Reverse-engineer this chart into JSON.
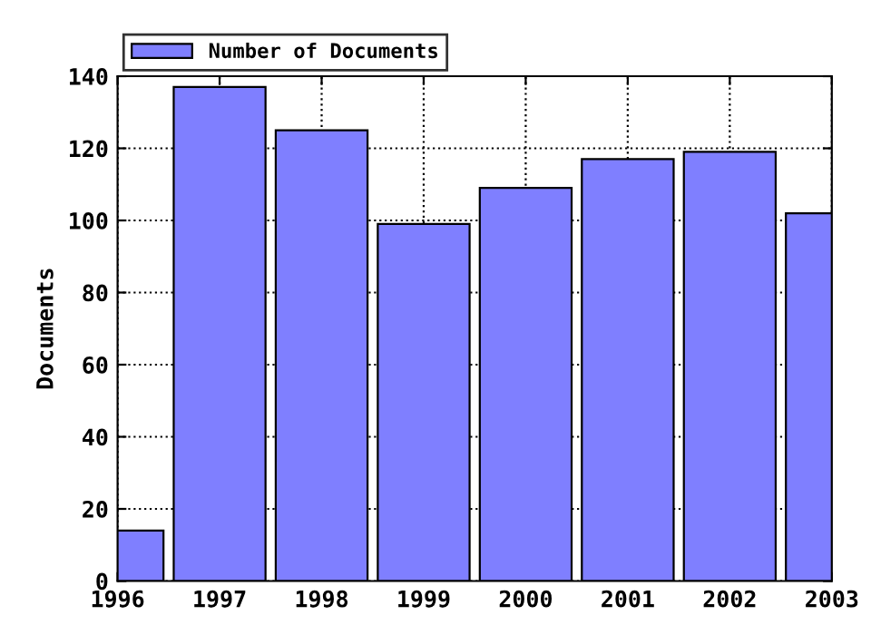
{
  "chart_data": {
    "type": "bar",
    "ylabel": "Documents",
    "x": [
      1996,
      1997,
      1998,
      1999,
      2000,
      2001,
      2002,
      2003
    ],
    "series": [
      {
        "name": "Number of Documents",
        "color": "#7f7fff",
        "values": [
          14,
          137,
          125,
          99,
          109,
          117,
          119,
          102
        ]
      }
    ],
    "xlim": [
      1996,
      2003
    ],
    "xticks": [
      1996,
      1997,
      1998,
      1999,
      2000,
      2001,
      2002,
      2003
    ],
    "ylim": [
      0,
      140
    ],
    "yticks": [
      0,
      20,
      40,
      60,
      80,
      100,
      120,
      140
    ],
    "grid": true,
    "legend": "top left"
  }
}
